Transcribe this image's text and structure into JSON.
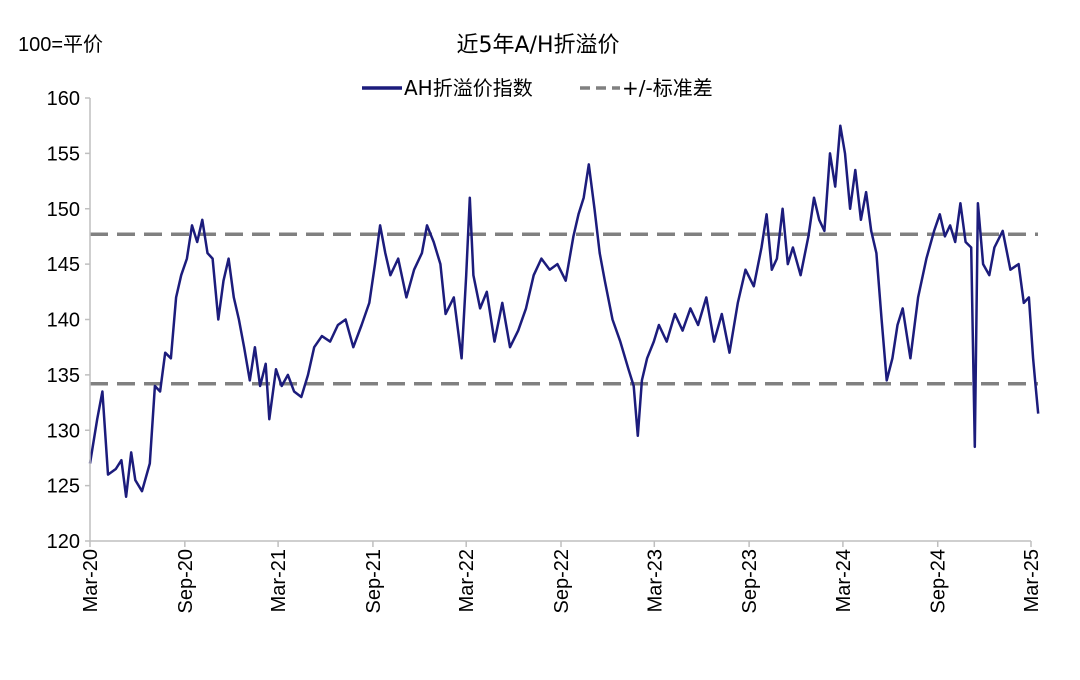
{
  "chart_data": {
    "type": "line",
    "title": "近5年A/H折溢价",
    "ylabel": "100=平价",
    "xlabel": "",
    "ylim": [
      120,
      160
    ],
    "yticks": [
      120,
      125,
      130,
      135,
      140,
      145,
      150,
      155,
      160
    ],
    "x_tick_labels": [
      "Mar-20",
      "Sep-20",
      "Mar-21",
      "Sep-21",
      "Mar-22",
      "Sep-22",
      "Mar-23",
      "Sep-23",
      "Mar-24",
      "Sep-24",
      "Mar-25"
    ],
    "x_tick_dates": [
      "2020-03",
      "2020-09",
      "2021-03",
      "2021-09",
      "2022-03",
      "2022-09",
      "2023-03",
      "2023-09",
      "2024-03",
      "2024-09",
      "2025-03"
    ],
    "legend_position": "top-center",
    "grid": false,
    "series": [
      {
        "name": "AH折溢价指数",
        "color": "#1c1c7c",
        "style": "solid",
        "points": [
          [
            "2020-03-01",
            127.0
          ],
          [
            "2020-03-15",
            131.0
          ],
          [
            "2020-03-25",
            133.5
          ],
          [
            "2020-04-05",
            126.0
          ],
          [
            "2020-04-20",
            126.5
          ],
          [
            "2020-05-01",
            127.3
          ],
          [
            "2020-05-10",
            124.0
          ],
          [
            "2020-05-20",
            128.0
          ],
          [
            "2020-05-28",
            125.5
          ],
          [
            "2020-06-10",
            124.5
          ],
          [
            "2020-06-25",
            127.0
          ],
          [
            "2020-07-05",
            134.0
          ],
          [
            "2020-07-15",
            133.5
          ],
          [
            "2020-07-25",
            137.0
          ],
          [
            "2020-08-05",
            136.5
          ],
          [
            "2020-08-15",
            142.0
          ],
          [
            "2020-08-25",
            144.0
          ],
          [
            "2020-09-05",
            145.5
          ],
          [
            "2020-09-15",
            148.5
          ],
          [
            "2020-09-25",
            147.0
          ],
          [
            "2020-10-05",
            149.0
          ],
          [
            "2020-10-15",
            146.0
          ],
          [
            "2020-10-25",
            145.5
          ],
          [
            "2020-11-05",
            140.0
          ],
          [
            "2020-11-15",
            143.5
          ],
          [
            "2020-11-25",
            145.5
          ],
          [
            "2020-12-05",
            142.0
          ],
          [
            "2020-12-15",
            140.0
          ],
          [
            "2020-12-25",
            137.5
          ],
          [
            "2021-01-05",
            134.5
          ],
          [
            "2021-01-15",
            137.5
          ],
          [
            "2021-01-25",
            134.0
          ],
          [
            "2021-02-05",
            136.0
          ],
          [
            "2021-02-12",
            131.0
          ],
          [
            "2021-02-25",
            135.5
          ],
          [
            "2021-03-08",
            134.0
          ],
          [
            "2021-03-20",
            135.0
          ],
          [
            "2021-04-01",
            133.5
          ],
          [
            "2021-04-15",
            133.0
          ],
          [
            "2021-04-28",
            135.0
          ],
          [
            "2021-05-10",
            137.5
          ],
          [
            "2021-05-25",
            138.5
          ],
          [
            "2021-06-10",
            138.0
          ],
          [
            "2021-06-25",
            139.5
          ],
          [
            "2021-07-10",
            140.0
          ],
          [
            "2021-07-25",
            137.5
          ],
          [
            "2021-08-10",
            139.5
          ],
          [
            "2021-08-25",
            141.5
          ],
          [
            "2021-09-05",
            145.0
          ],
          [
            "2021-09-15",
            148.5
          ],
          [
            "2021-09-25",
            146.0
          ],
          [
            "2021-10-05",
            144.0
          ],
          [
            "2021-10-20",
            145.5
          ],
          [
            "2021-11-05",
            142.0
          ],
          [
            "2021-11-20",
            144.5
          ],
          [
            "2021-12-05",
            146.0
          ],
          [
            "2021-12-15",
            148.5
          ],
          [
            "2021-12-28",
            147.0
          ],
          [
            "2022-01-10",
            145.0
          ],
          [
            "2022-01-20",
            140.5
          ],
          [
            "2022-02-05",
            142.0
          ],
          [
            "2022-02-20",
            136.5
          ],
          [
            "2022-03-01",
            144.0
          ],
          [
            "2022-03-08",
            151.0
          ],
          [
            "2022-03-15",
            144.0
          ],
          [
            "2022-03-28",
            141.0
          ],
          [
            "2022-04-10",
            142.5
          ],
          [
            "2022-04-25",
            138.0
          ],
          [
            "2022-05-10",
            141.5
          ],
          [
            "2022-05-25",
            137.5
          ],
          [
            "2022-06-10",
            139.0
          ],
          [
            "2022-06-25",
            141.0
          ],
          [
            "2022-07-10",
            144.0
          ],
          [
            "2022-07-25",
            145.5
          ],
          [
            "2022-08-10",
            144.5
          ],
          [
            "2022-08-25",
            145.0
          ],
          [
            "2022-09-10",
            143.5
          ],
          [
            "2022-09-25",
            147.5
          ],
          [
            "2022-10-05",
            149.5
          ],
          [
            "2022-10-15",
            151.0
          ],
          [
            "2022-10-25",
            154.0
          ],
          [
            "2022-11-05",
            150.0
          ],
          [
            "2022-11-15",
            146.0
          ],
          [
            "2022-11-25",
            143.5
          ],
          [
            "2022-12-10",
            140.0
          ],
          [
            "2022-12-25",
            138.0
          ],
          [
            "2023-01-10",
            135.5
          ],
          [
            "2023-01-20",
            134.0
          ],
          [
            "2023-01-28",
            129.5
          ],
          [
            "2023-02-05",
            134.5
          ],
          [
            "2023-02-15",
            136.5
          ],
          [
            "2023-02-28",
            138.0
          ],
          [
            "2023-03-10",
            139.5
          ],
          [
            "2023-03-25",
            138.0
          ],
          [
            "2023-04-10",
            140.5
          ],
          [
            "2023-04-25",
            139.0
          ],
          [
            "2023-05-10",
            141.0
          ],
          [
            "2023-05-25",
            139.5
          ],
          [
            "2023-06-10",
            142.0
          ],
          [
            "2023-06-25",
            138.0
          ],
          [
            "2023-07-10",
            140.5
          ],
          [
            "2023-07-25",
            137.0
          ],
          [
            "2023-08-10",
            141.5
          ],
          [
            "2023-08-25",
            144.5
          ],
          [
            "2023-09-10",
            143.0
          ],
          [
            "2023-09-25",
            146.5
          ],
          [
            "2023-10-05",
            149.5
          ],
          [
            "2023-10-15",
            144.5
          ],
          [
            "2023-10-25",
            145.5
          ],
          [
            "2023-11-05",
            150.0
          ],
          [
            "2023-11-15",
            145.0
          ],
          [
            "2023-11-25",
            146.5
          ],
          [
            "2023-12-10",
            144.0
          ],
          [
            "2023-12-25",
            147.5
          ],
          [
            "2024-01-05",
            151.0
          ],
          [
            "2024-01-15",
            149.0
          ],
          [
            "2024-01-25",
            148.0
          ],
          [
            "2024-02-05",
            155.0
          ],
          [
            "2024-02-15",
            152.0
          ],
          [
            "2024-02-25",
            157.5
          ],
          [
            "2024-03-05",
            155.0
          ],
          [
            "2024-03-15",
            150.0
          ],
          [
            "2024-03-25",
            153.5
          ],
          [
            "2024-04-05",
            149.0
          ],
          [
            "2024-04-15",
            151.5
          ],
          [
            "2024-04-25",
            148.0
          ],
          [
            "2024-05-05",
            146.0
          ],
          [
            "2024-05-15",
            140.0
          ],
          [
            "2024-05-25",
            134.5
          ],
          [
            "2024-06-05",
            136.5
          ],
          [
            "2024-06-15",
            139.5
          ],
          [
            "2024-06-25",
            141.0
          ],
          [
            "2024-07-10",
            136.5
          ],
          [
            "2024-07-25",
            142.0
          ],
          [
            "2024-08-10",
            145.5
          ],
          [
            "2024-08-25",
            148.0
          ],
          [
            "2024-09-05",
            149.5
          ],
          [
            "2024-09-15",
            147.5
          ],
          [
            "2024-09-25",
            148.5
          ],
          [
            "2024-10-05",
            147.0
          ],
          [
            "2024-10-15",
            150.5
          ],
          [
            "2024-10-25",
            147.0
          ],
          [
            "2024-11-05",
            146.5
          ],
          [
            "2024-11-12",
            128.5
          ],
          [
            "2024-11-18",
            150.5
          ],
          [
            "2024-11-28",
            145.0
          ],
          [
            "2024-12-10",
            144.0
          ],
          [
            "2024-12-20",
            146.5
          ],
          [
            "2025-01-05",
            148.0
          ],
          [
            "2025-01-20",
            144.5
          ],
          [
            "2025-02-05",
            145.0
          ],
          [
            "2025-02-15",
            141.5
          ],
          [
            "2025-02-25",
            142.0
          ],
          [
            "2025-03-05",
            136.5
          ],
          [
            "2025-03-10",
            134.0
          ],
          [
            "2025-03-15",
            131.5
          ]
        ]
      },
      {
        "name": "+/-标准差",
        "color": "#808080",
        "style": "dashed",
        "hlines": [
          147.7,
          134.2
        ]
      }
    ]
  }
}
